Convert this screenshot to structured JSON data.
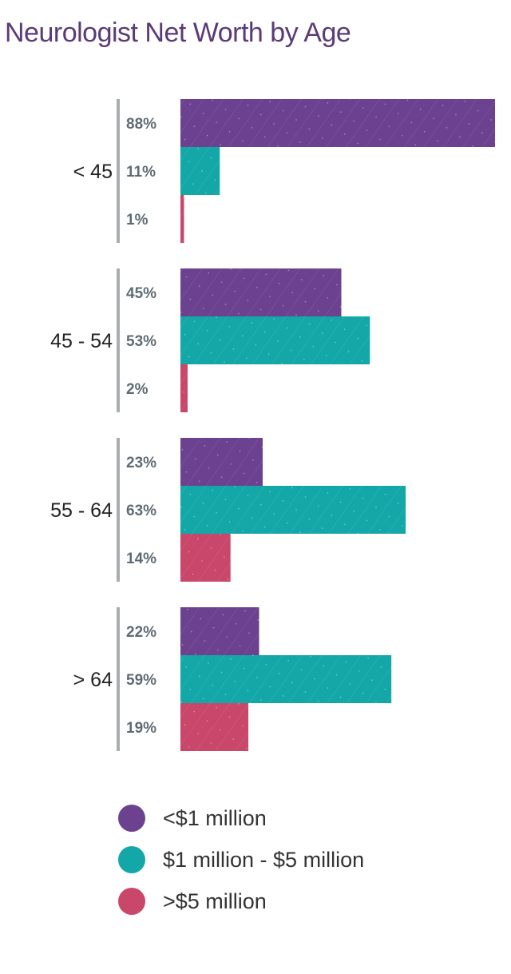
{
  "chart_data": {
    "type": "bar",
    "orientation": "horizontal",
    "title": "Neurologist Net Worth by Age",
    "unit": "%",
    "categories": [
      "< 45",
      "45 - 54",
      "55 - 64",
      "> 64"
    ],
    "series": [
      {
        "name": "<$1 million",
        "color": "#6b4190",
        "values": [
          88,
          45,
          23,
          22
        ],
        "labels": [
          "88%",
          "45%",
          "23%",
          "22%"
        ]
      },
      {
        "name": "$1 million - $5 million",
        "color": "#14a7a7",
        "values": [
          11,
          53,
          63,
          59
        ],
        "labels": [
          "11%",
          "53%",
          "63%",
          "59%"
        ]
      },
      {
        "name": ">$5 million",
        "color": "#c8476a",
        "values": [
          1,
          2,
          14,
          19
        ],
        "labels": [
          "1%",
          "2%",
          "14%",
          "19%"
        ]
      }
    ],
    "xlim": [
      0,
      88
    ],
    "grid": false,
    "legend_position": "bottom"
  }
}
